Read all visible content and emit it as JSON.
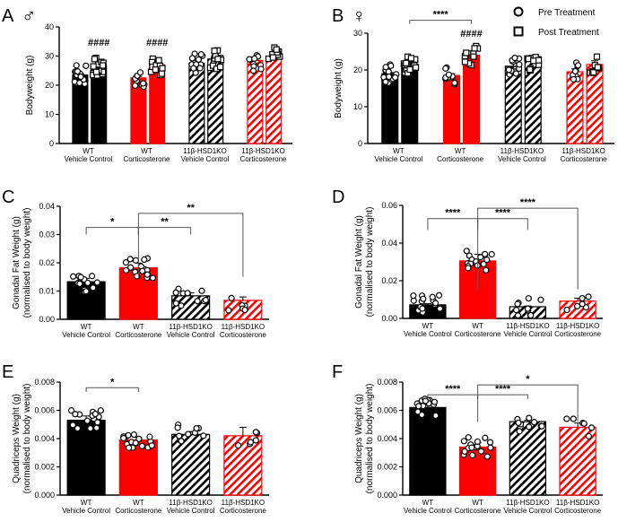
{
  "figure": {
    "legend": {
      "pre": "Pre Treatment",
      "post": "Post Treatment"
    }
  },
  "colors": {
    "wt_vc": "#000000",
    "wt_cort": "#ff0000",
    "ko_vc": "#000000",
    "ko_cort": "#ff0000",
    "ink": "#000000"
  },
  "chart_data": [
    {
      "panel": "A",
      "sex_symbol": "♂",
      "type": "bar",
      "ylabel": "Bodyweight (g)",
      "ylim": [
        0,
        40
      ],
      "yticks": [
        "0",
        "10",
        "20",
        "30",
        "40"
      ],
      "categories": [
        {
          "line1": "WT",
          "line2": "Vehicle Control"
        },
        {
          "line1": "WT",
          "line2": "Corticosterone"
        },
        {
          "line1": "11β-HSD1KO",
          "line2": "Vehicle Control"
        },
        {
          "line1": "11β-HSD1KO",
          "line2": "Corticosterone"
        }
      ],
      "series": [
        {
          "name": "Pre Treatment",
          "values": [
            23.5,
            22.5,
            27.5,
            28.5
          ]
        },
        {
          "name": "Post Treatment",
          "values": [
            26.5,
            27.0,
            29.0,
            29.5
          ]
        }
      ],
      "errors": [
        [
          0.6,
          0.5,
          1.0,
          1.2
        ],
        [
          0.7,
          0.6,
          1.3,
          1.3
        ]
      ],
      "annotations": [
        {
          "text": "####",
          "group": 0,
          "series": 1,
          "y": 33.5
        },
        {
          "text": "####",
          "group": 1,
          "series": 1,
          "y": 33.5
        }
      ],
      "brackets": []
    },
    {
      "panel": "B",
      "sex_symbol": "♀",
      "type": "bar",
      "ylabel": "Bodyweight (g)",
      "ylim": [
        0,
        30
      ],
      "yticks": [
        "0",
        "10",
        "20",
        "30"
      ],
      "categories": [
        {
          "line1": "WT",
          "line2": "Vehicle Control"
        },
        {
          "line1": "WT",
          "line2": "Corticosterone"
        },
        {
          "line1": "11β-HSD1KO",
          "line2": "Vehicle Control"
        },
        {
          "line1": "11β-HSD1KO",
          "line2": "Corticosterone"
        }
      ],
      "series": [
        {
          "name": "Pre Treatment",
          "values": [
            19.0,
            18.5,
            21.0,
            19.5
          ]
        },
        {
          "name": "Post Treatment",
          "values": [
            21.5,
            24.0,
            22.5,
            21.5
          ]
        }
      ],
      "errors": [
        [
          0.3,
          0.5,
          0.8,
          0.8
        ],
        [
          0.5,
          1.2,
          0.7,
          1.0
        ]
      ],
      "annotations": [
        {
          "text": "####",
          "group": 1,
          "series": 1,
          "y": 29.0
        }
      ],
      "brackets": [
        {
          "text": "****",
          "from": [
            0,
            1
          ],
          "to": [
            1,
            1
          ],
          "y": 33.5,
          "drop": 1.0
        }
      ]
    },
    {
      "panel": "C",
      "type": "bar",
      "ylabel": "Gonadal Fat Weight (g)",
      "ylabel2": "(normalised to body weight)",
      "ylim": [
        0,
        0.04
      ],
      "yticks": [
        "0.00",
        "0.01",
        "0.02",
        "0.03",
        "0.04"
      ],
      "categories": [
        {
          "line1": "WT",
          "line2": "Vehicle Control"
        },
        {
          "line1": "WT",
          "line2": "Corticosterone"
        },
        {
          "line1": "11β-HSD1KO",
          "line2": "Vehicle Control"
        },
        {
          "line1": "11β-HSD1KO",
          "line2": "Corticosterone"
        }
      ],
      "series": [
        {
          "name": "Gonadal fat",
          "values": [
            0.0133,
            0.0182,
            0.0083,
            0.0067
          ]
        }
      ],
      "errors": [
        [
          0.0012,
          0.0017,
          0.0011,
          0.0012
        ]
      ],
      "brackets": [
        {
          "text": "*",
          "from": [
            0,
            0
          ],
          "to": [
            1,
            0
          ],
          "y": 0.0325,
          "drop": 0.0025
        },
        {
          "text": "**",
          "from": [
            1,
            0
          ],
          "to": [
            2,
            0
          ],
          "y": 0.0325,
          "drop": 0.0025
        },
        {
          "text": "**",
          "from": [
            1,
            0
          ],
          "to": [
            3,
            0
          ],
          "y": 0.0375,
          "drop": 0.0225
        }
      ]
    },
    {
      "panel": "D",
      "type": "bar",
      "ylabel": "Gonadal Fat Weight (g)",
      "ylabel2": "(normalised to body weight)",
      "ylim": [
        0,
        0.06
      ],
      "yticks": [
        "0.00",
        "0.02",
        "0.04",
        "0.06"
      ],
      "categories": [
        {
          "line1": "WT",
          "line2": "Vehicle Control"
        },
        {
          "line1": "WT",
          "line2": "Corticosterone"
        },
        {
          "line1": "11β-HSD1KO",
          "line2": "Vehicle Control"
        },
        {
          "line1": "11β-HSD1KO",
          "line2": "Corticosterone"
        }
      ],
      "series": [
        {
          "name": "Gonadal fat",
          "values": [
            0.0072,
            0.0305,
            0.0062,
            0.0092
          ]
        }
      ],
      "errors": [
        [
          0.0006,
          0.0035,
          0.0004,
          0.0015
        ]
      ],
      "brackets": [
        {
          "text": "****",
          "from": [
            0,
            0
          ],
          "to": [
            1,
            0
          ],
          "y": 0.053,
          "drop": 0.006
        },
        {
          "text": "****",
          "from": [
            1,
            0
          ],
          "to": [
            2,
            0
          ],
          "y": 0.053,
          "drop": 0.006
        },
        {
          "text": "****",
          "from": [
            1,
            0
          ],
          "to": [
            3,
            0
          ],
          "y": 0.0585,
          "drop": 0.043
        }
      ]
    },
    {
      "panel": "E",
      "type": "bar",
      "ylabel": "Quadriceps Weight (g)",
      "ylabel2": "(normalised to body weight)",
      "ylim": [
        0,
        0.008
      ],
      "yticks": [
        "0.000",
        "0.002",
        "0.004",
        "0.006",
        "0.008"
      ],
      "categories": [
        {
          "line1": "WT",
          "line2": "Vehicle Control"
        },
        {
          "line1": "WT",
          "line2": "Corticosterone"
        },
        {
          "line1": "11β-HSD1KO",
          "line2": "Vehicle Control"
        },
        {
          "line1": "11β-HSD1KO",
          "line2": "Corticosterone"
        }
      ],
      "series": [
        {
          "name": "Quadriceps",
          "values": [
            0.0053,
            0.0039,
            0.0043,
            0.0042
          ]
        }
      ],
      "errors": [
        [
          0.0003,
          0.0002,
          0.0002,
          0.0006
        ]
      ],
      "brackets": [
        {
          "text": "*",
          "from": [
            0,
            0
          ],
          "to": [
            1,
            0
          ],
          "y": 0.0076,
          "drop": 0.0003
        }
      ]
    },
    {
      "panel": "F",
      "type": "bar",
      "ylabel": "Quadriceps Weight (g)",
      "ylabel2": "(normalised to body weight)",
      "ylim": [
        0,
        0.008
      ],
      "yticks": [
        "0.000",
        "0.002",
        "0.004",
        "0.006",
        "0.008"
      ],
      "categories": [
        {
          "line1": "WT",
          "line2": "Vehicle Control"
        },
        {
          "line1": "WT",
          "line2": "Corticosterone"
        },
        {
          "line1": "11β-HSD1KO",
          "line2": "Vehicle Control"
        },
        {
          "line1": "11β-HSD1KO",
          "line2": "Corticosterone"
        }
      ],
      "series": [
        {
          "name": "Quadriceps",
          "values": [
            0.0062,
            0.0034,
            0.0052,
            0.0048
          ]
        }
      ],
      "errors": [
        [
          0.0002,
          0.0003,
          0.0001,
          0.0003
        ]
      ],
      "brackets": [
        {
          "text": "****",
          "from": [
            0,
            0
          ],
          "to": [
            1,
            0
          ],
          "y": 0.0071,
          "drop": 0.0003
        },
        {
          "text": "****",
          "from": [
            1,
            0
          ],
          "to": [
            2,
            0
          ],
          "y": 0.0071,
          "drop": 0.0003
        },
        {
          "text": "*",
          "from": [
            1,
            0
          ],
          "to": [
            3,
            0
          ],
          "y": 0.0078,
          "drop": 0.0026
        }
      ]
    }
  ]
}
